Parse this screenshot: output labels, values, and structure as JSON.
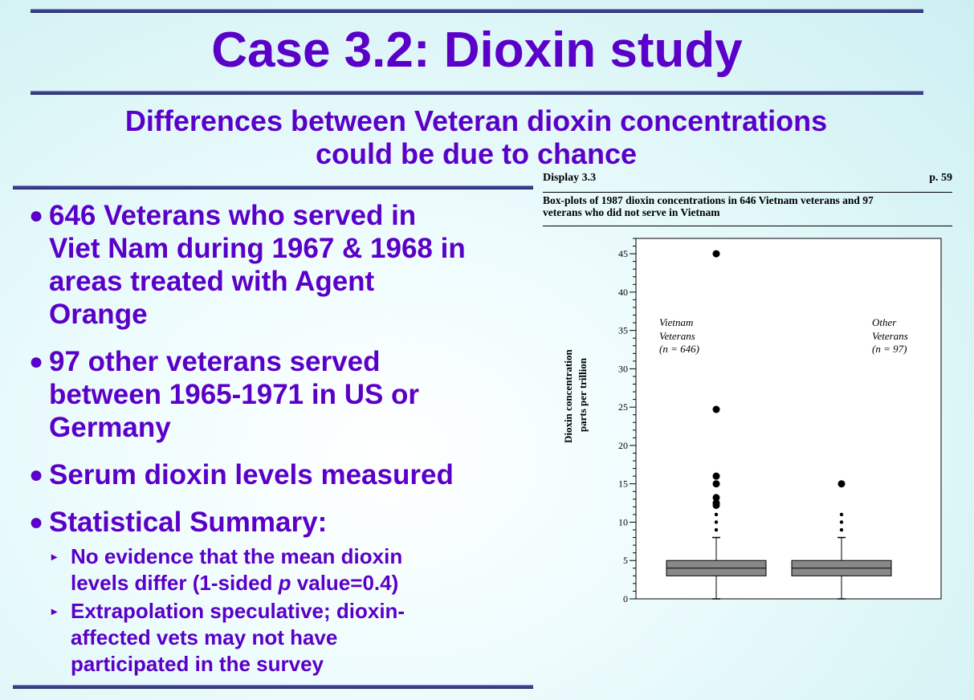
{
  "slide": {
    "title": "Case 3.2: Dioxin study",
    "subtitle_line1": "Differences between Veteran dioxin concentrations",
    "subtitle_line2": "could be due to chance",
    "bullet_symbol": "●",
    "sub_bullet_symbol": "▸",
    "bullets": [
      {
        "lines": [
          "646 Veterans who served in",
          "Viet Nam during 1967 & 1968 in",
          "areas treated with Agent",
          "Orange"
        ]
      },
      {
        "lines": [
          "97 other veterans served",
          "between 1965-1971 in US or",
          "Germany"
        ]
      },
      {
        "lines": [
          "Serum dioxin levels measured"
        ]
      },
      {
        "lines": [
          "Statistical Summary:"
        ]
      }
    ],
    "sub_bullets": [
      {
        "line1": "No evidence that the mean dioxin",
        "line2_pre": "levels differ (1-sided ",
        "line2_italic": "p",
        "line2_post": " value=0.4)"
      },
      {
        "lines": [
          "Extrapolation speculative; dioxin-",
          "affected vets may not have",
          "participated in the survey"
        ]
      }
    ],
    "colors": {
      "text": "#5a00c8",
      "rule": "#3b3f8c"
    }
  },
  "figure": {
    "display_label": "Display 3.3",
    "page_ref": "p. 59",
    "caption_line1": "Box-plots of 1987 dioxin concentrations in 646 Vietnam veterans and 97",
    "caption_line2": "veterans who did not serve in Vietnam"
  },
  "chart_data": {
    "type": "boxplot",
    "ylabel_line1": "Dioxin concentration",
    "ylabel_line2": "parts per trillion",
    "ylim": [
      0,
      47
    ],
    "yticks": [
      0,
      5,
      10,
      15,
      20,
      25,
      30,
      35,
      40,
      45
    ],
    "groups": [
      {
        "label_line1": "Vietnam",
        "label_line2": "Veterans",
        "label_line3": "(n = 646)",
        "q1": 3,
        "median": 4,
        "q3": 5,
        "whisker_low": 0,
        "whisker_high": 8,
        "outliers_large": [
          45,
          24.7,
          16,
          15,
          13.2,
          12.5,
          12.2
        ],
        "outliers_small": [
          11,
          10,
          9
        ]
      },
      {
        "label_line1": "Other",
        "label_line2": "Veterans",
        "label_line3": "(n = 97)",
        "q1": 3,
        "median": 4,
        "q3": 5,
        "whisker_low": 0,
        "whisker_high": 8,
        "outliers_large": [
          15
        ],
        "outliers_small": [
          11,
          10,
          9
        ]
      }
    ]
  }
}
